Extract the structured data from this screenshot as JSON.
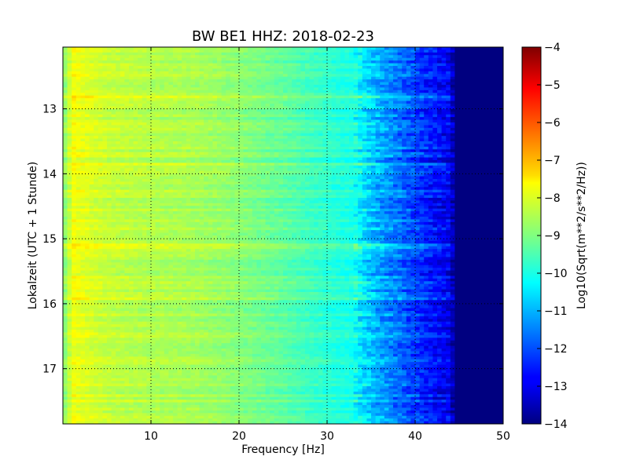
{
  "chart_data": {
    "type": "heatmap",
    "title": "BW BE1 HHZ: 2018-02-23",
    "xlabel": "Frequency [Hz]",
    "ylabel": "Lokalzeit (UTC + 1 Stunde)",
    "xlim": [
      0,
      50
    ],
    "ylim": [
      12.05,
      17.85
    ],
    "y_inverted": true,
    "x_ticks": [
      10,
      20,
      30,
      40,
      50
    ],
    "y_ticks": [
      13,
      14,
      15,
      16,
      17
    ],
    "grid": true,
    "colormap": "jet",
    "colorbar": {
      "label": "Log10(Sqrt(m**2/s**2/Hz))",
      "range": [
        -14,
        -4
      ],
      "ticks": [
        -4,
        -5,
        -6,
        -7,
        -8,
        -9,
        -10,
        -11,
        -12,
        -13,
        -14
      ]
    },
    "spectrum_profile": {
      "frequency_hz": [
        0.5,
        1,
        2,
        5,
        10,
        15,
        20,
        25,
        30,
        33,
        35,
        38,
        40,
        42,
        44,
        44.5,
        50
      ],
      "log10_psd": [
        -8.8,
        -7.8,
        -8.0,
        -8.3,
        -8.5,
        -8.6,
        -8.9,
        -9.3,
        -9.8,
        -10.0,
        -10.8,
        -11.6,
        -12.1,
        -12.6,
        -12.9,
        -14.0,
        -14.0
      ]
    },
    "notable_rows": [
      {
        "time": 15.1,
        "note": "stronger band around 5-16 Hz",
        "offset": 0.5
      },
      {
        "time": 12.8,
        "offset": 0.3
      },
      {
        "time": 13.85,
        "offset": 0.35
      },
      {
        "time": 15.9,
        "offset": 0.3
      }
    ]
  }
}
